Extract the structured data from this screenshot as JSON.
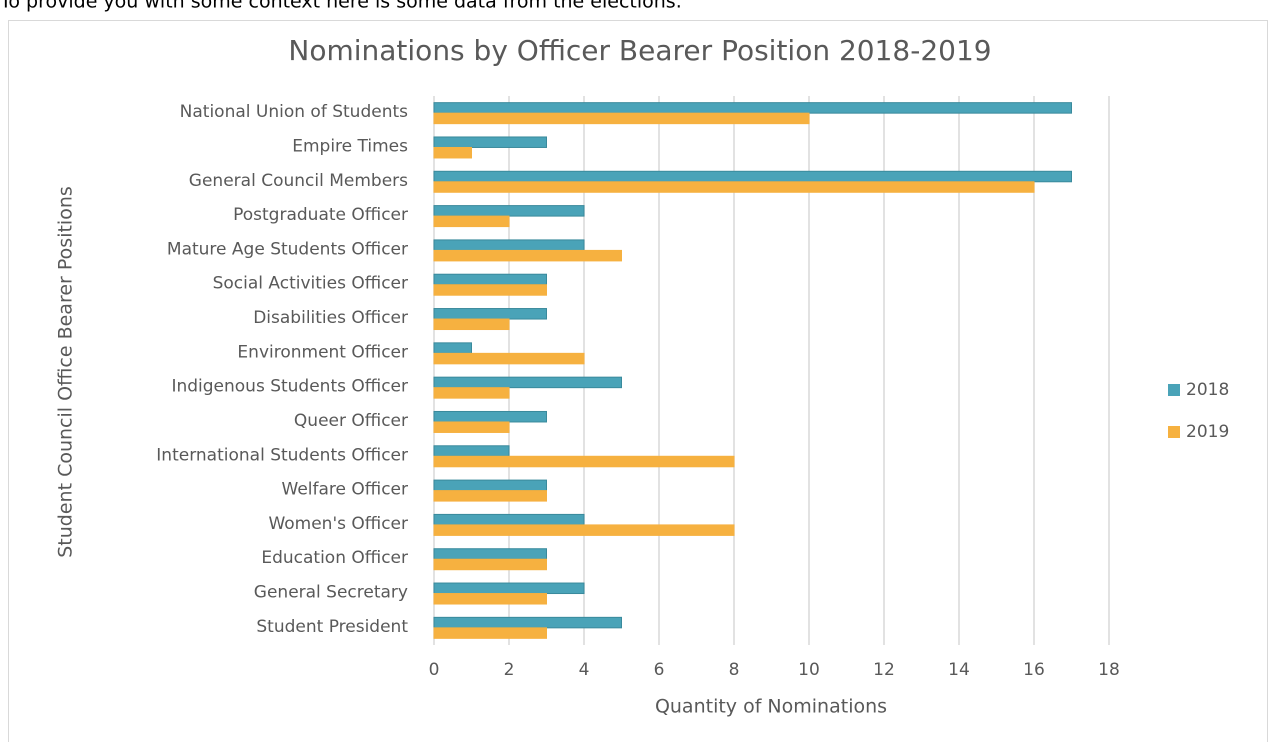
{
  "intro": "To provide you with some context here is some data from the elections.",
  "chart_data": {
    "type": "bar",
    "orientation": "horizontal",
    "title": "Nominations by Officer Bearer Position 2018-2019",
    "x_label": "Quantity of Nominations",
    "y_label": "Student Council Office Bearer Positions",
    "categories": [
      "National Union of Students",
      "Empire Times",
      "General Council Members",
      "Postgraduate Officer",
      "Mature Age Students Officer",
      "Social Activities Officer",
      "Disabilities Officer",
      "Environment Officer",
      "Indigenous Students Officer",
      "Queer Officer",
      "International Students Officer",
      "Welfare Officer",
      "Women's Officer",
      "Education Officer",
      "General Secretary",
      "Student President"
    ],
    "series": [
      {
        "name": "2018",
        "color": "#4aa3b8",
        "values": [
          17,
          3,
          17,
          4,
          4,
          3,
          3,
          1,
          5,
          3,
          2,
          3,
          4,
          3,
          4,
          5
        ]
      },
      {
        "name": "2019",
        "color": "#f6b140",
        "values": [
          10,
          1,
          16,
          2,
          5,
          3,
          2,
          4,
          2,
          2,
          8,
          3,
          8,
          3,
          3,
          3
        ]
      }
    ],
    "xlim": [
      0,
      18
    ],
    "xticks": [
      0,
      2,
      4,
      6,
      8,
      10,
      12,
      14,
      16,
      18
    ],
    "grid": true,
    "legend": "right"
  }
}
